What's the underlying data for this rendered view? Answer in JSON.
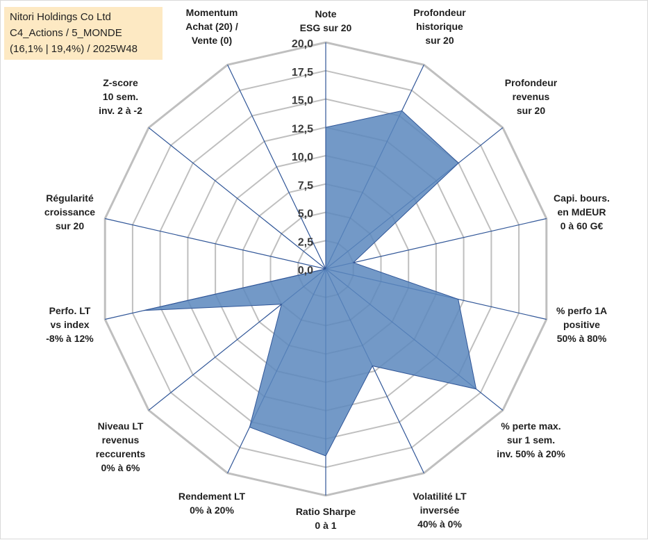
{
  "info": {
    "company": "Nitori Holdings Co Ltd",
    "portfolio": "C4_Actions / 5_MONDE",
    "stats": "(16,1% | 19,4%) / 2025W48"
  },
  "colors": {
    "series_fill": "#5b87bd",
    "series_stroke": "#2f5597",
    "grid": "#bfbfbf",
    "spokes": "#2f5597"
  },
  "chart_data": {
    "type": "radar",
    "title": "",
    "rmin": 0,
    "rmax": 20,
    "ticks": [
      "0,0",
      "2,5",
      "5,0",
      "7,5",
      "10,0",
      "12,5",
      "15,0",
      "17,5",
      "20,0"
    ],
    "axes": [
      {
        "lines": [
          "Note",
          "ESG sur 20"
        ]
      },
      {
        "lines": [
          "Profondeur",
          "historique",
          "sur 20"
        ]
      },
      {
        "lines": [
          "Profondeur",
          "revenus",
          "sur 20"
        ]
      },
      {
        "lines": [
          "Capi. bours.",
          "en MdEUR",
          "0 à 60 G€"
        ]
      },
      {
        "lines": [
          "% perfo 1A",
          "positive",
          "50% à 80%"
        ]
      },
      {
        "lines": [
          "% perte max.",
          "sur 1 sem.",
          "inv. 50% à 20%"
        ]
      },
      {
        "lines": [
          "Volatilité LT",
          "inversée",
          "40% à 0%"
        ]
      },
      {
        "lines": [
          "Ratio Sharpe",
          "0 à 1"
        ]
      },
      {
        "lines": [
          "Rendement LT",
          "0% à 20%"
        ]
      },
      {
        "lines": [
          "Niveau LT",
          "revenus",
          "reccurents",
          "0% à 6%"
        ]
      },
      {
        "lines": [
          "Perfo. LT",
          "vs index",
          "-8% à 12%"
        ]
      },
      {
        "lines": [
          "Régularité",
          "croissance",
          "sur 20"
        ]
      },
      {
        "lines": [
          "Z-score",
          "10 sem.",
          "inv. 2 à -2"
        ]
      },
      {
        "lines": [
          "Momentum",
          "Achat (20) /",
          "Vente (0)"
        ]
      }
    ],
    "series": [
      {
        "name": "Nitori Holdings Co Ltd",
        "values": [
          12.5,
          15.5,
          15.0,
          2.5,
          12.0,
          17.0,
          9.5,
          16.5,
          15.5,
          5.0,
          16.5,
          0,
          0,
          0
        ]
      }
    ]
  }
}
